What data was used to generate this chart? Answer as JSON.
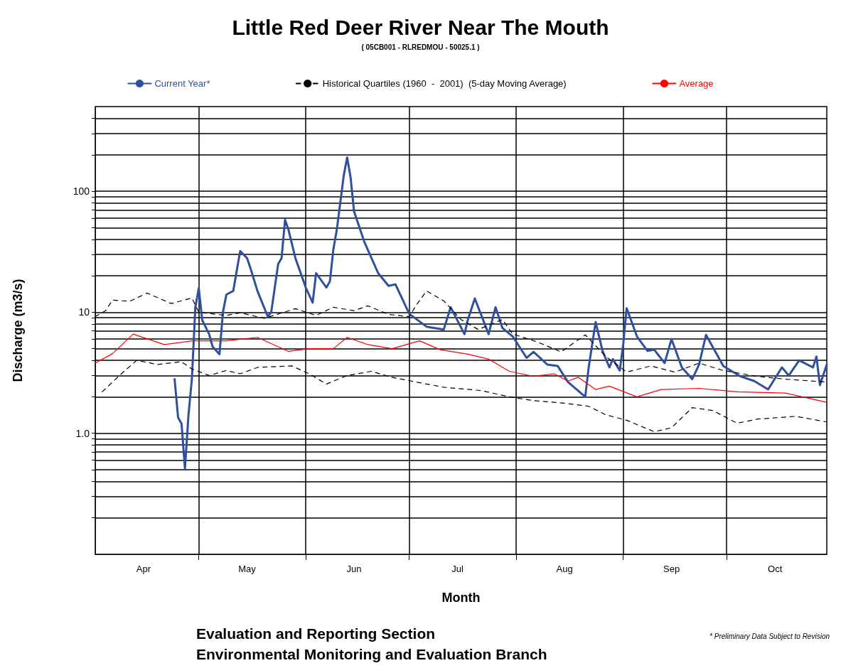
{
  "chart_data": {
    "type": "line",
    "title": "Little Red Deer River Near The Mouth",
    "subtitle": "( 05CB001 - RLREDMOU - 50025.1 )",
    "xlabel": "Month",
    "ylabel": "Discharge (m3/s)",
    "annotations": [
      "Evaluation and Reporting Section",
      "Environmental Monitoring and Evaluation Branch",
      "* Preliminary Data Subject to Revision"
    ],
    "log": "y",
    "grid": true,
    "legend": "top",
    "marker": "none",
    "xlim": [
      "--04-01",
      "--10-30"
    ],
    "xticks": [
      {
        "value": "--05-01",
        "label": null
      },
      {
        "value": "--06-01",
        "label": null
      },
      {
        "value": "--07-01",
        "label": null
      },
      {
        "value": "--08-01",
        "label": null
      },
      {
        "value": "--09-01",
        "label": null
      },
      {
        "value": "--10-01",
        "label": null
      },
      {
        "value": "--04-15",
        "label": "Apr"
      },
      {
        "value": "--05-15",
        "label": "May"
      },
      {
        "value": "--06-15",
        "label": "Jun"
      },
      {
        "value": "--07-15",
        "label": "Jul"
      },
      {
        "value": "--08-15",
        "label": "Aug"
      },
      {
        "value": "--09-15",
        "label": "Sep"
      },
      {
        "value": "--10-15",
        "label": "Oct"
      }
    ],
    "ylim": [
      0.1,
      500
    ],
    "yticks": [
      {
        "value": 0.2,
        "label": null
      },
      {
        "value": 0.3,
        "label": null
      },
      {
        "value": 0.4,
        "label": null
      },
      {
        "value": 0.5,
        "label": null
      },
      {
        "value": 0.6,
        "label": null
      },
      {
        "value": 0.7,
        "label": null
      },
      {
        "value": 0.8,
        "label": null
      },
      {
        "value": 0.9,
        "label": null
      },
      {
        "value": 1,
        "label": "1.0"
      },
      {
        "value": 2,
        "label": null
      },
      {
        "value": 3,
        "label": null
      },
      {
        "value": 4,
        "label": null
      },
      {
        "value": 5,
        "label": null
      },
      {
        "value": 6,
        "label": null
      },
      {
        "value": 7,
        "label": null
      },
      {
        "value": 8,
        "label": null
      },
      {
        "value": 9,
        "label": null
      },
      10,
      {
        "value": 20,
        "label": null
      },
      {
        "value": 30,
        "label": null
      },
      {
        "value": 40,
        "label": null
      },
      {
        "value": 50,
        "label": null
      },
      {
        "value": 60,
        "label": null
      },
      {
        "value": 70,
        "label": null
      },
      {
        "value": 80,
        "label": null
      },
      {
        "value": 90,
        "label": null
      },
      100,
      {
        "value": 200,
        "label": null
      },
      {
        "value": 300,
        "label": null
      },
      {
        "value": 400,
        "label": null
      }
    ],
    "series": [
      {
        "name": "Current Year*",
        "color": "#2f4f9f",
        "line_style": "solid",
        "x": [
          "--04-24",
          "--04-25",
          "--04-26",
          "--04-27",
          "--04-28",
          "--04-29",
          "--04-30",
          "--05-01",
          "--05-02",
          "--05-04",
          "--05-05",
          "--05-07",
          "--05-08",
          "--05-09",
          "--05-11",
          "--05-12",
          "--05-13",
          "--05-15",
          "--05-16",
          "--05-18",
          "--05-21",
          "--05-22",
          "--05-24",
          "--05-25",
          "--05-26",
          "--05-27",
          "--05-29",
          "--06-01",
          "--06-03",
          "--06-04",
          "--06-07",
          "--06-08",
          "--06-09",
          "--06-10",
          "--06-12",
          "--06-13",
          "--06-14",
          "--06-15",
          "--06-18",
          "--06-22",
          "--06-25",
          "--06-27",
          "--07-01",
          "--07-06",
          "--07-11",
          "--07-13",
          "--07-17",
          "--07-18",
          "--07-20",
          "--07-24",
          "--07-26",
          "--07-28",
          "--07-31",
          "--08-04",
          "--08-06",
          "--08-10",
          "--08-13",
          "--08-16",
          "--08-21",
          "--08-22",
          "--08-24",
          "--08-26",
          "--08-28",
          "--08-29",
          "--08-31",
          "--09-01",
          "--09-02",
          "--09-05",
          "--09-08",
          "--09-10",
          "--09-13",
          "--09-15",
          "--09-18",
          "--09-21",
          "--09-23",
          "--09-25",
          "--09-30",
          "--10-05",
          "--10-09",
          "--10-13",
          "--10-17",
          "--10-19",
          "--10-22",
          "--10-26",
          "--10-27",
          "--10-28",
          "--10-30"
        ],
        "values": [
          2.8,
          1.35,
          1.2,
          0.51,
          1.4,
          2.8,
          11,
          15.8,
          8.6,
          6.6,
          5.2,
          4.5,
          10,
          14,
          15,
          22,
          32,
          28,
          23,
          15,
          9.2,
          10,
          25,
          28,
          58,
          48,
          28,
          16,
          12,
          21,
          16,
          18,
          33,
          48,
          134,
          190,
          130,
          68,
          38,
          21,
          16.5,
          17,
          9.7,
          7.6,
          7.2,
          11,
          6.6,
          8.7,
          13,
          6.6,
          11,
          7.4,
          6.3,
          4.2,
          4.7,
          3.7,
          3.6,
          2.65,
          2.0,
          3.5,
          8.3,
          4.8,
          3.5,
          4.1,
          3.3,
          5.4,
          10.8,
          6.3,
          4.8,
          4.9,
          3.8,
          6.0,
          3.5,
          2.8,
          3.7,
          6.5,
          3.6,
          2.95,
          2.7,
          2.3,
          3.5,
          3.0,
          4.0,
          3.5,
          4.3,
          2.5,
          3.7
        ]
      },
      {
        "name": "Historical Quartiles (1960  -  2001)  (5-day Moving Average)",
        "color": "#000000",
        "line_style": "dashed",
        "x": [
          "--04-01",
          "--04-04",
          "--04-06",
          "--04-11",
          "--04-16",
          "--04-23",
          "--04-29",
          "--05-01",
          "--05-09",
          "--05-13",
          "--05-20",
          "--05-29",
          "--06-04",
          "--06-09",
          "--06-15",
          "--06-19",
          "--06-25",
          "--07-01",
          "--07-03",
          "--07-06",
          "--07-11",
          "--07-16",
          "--07-21",
          "--07-28",
          "--07-31",
          "--08-07",
          "--08-14",
          "--08-21",
          "--08-27",
          "--09-02",
          "--09-09",
          "--09-16",
          "--09-23",
          "--09-30",
          "--10-10",
          "--10-18",
          "--10-30"
        ],
        "values": [
          9.2,
          10.3,
          12.6,
          12.3,
          14.4,
          11.8,
          13.1,
          10.0,
          9.4,
          9.9,
          8.9,
          10.7,
          9.4,
          11.0,
          10.3,
          11.3,
          9.6,
          9.2,
          11.4,
          15,
          12.4,
          8.7,
          7.2,
          8.7,
          6.6,
          5.7,
          4.7,
          6.5,
          4.3,
          3.2,
          3.6,
          3.2,
          3.8,
          3.3,
          2.95,
          2.8,
          2.65
        ]
      },
      {
        "color": "#000000",
        "line_style": "dashed",
        "x": [
          "--04-03",
          "--04-08",
          "--04-13",
          "--04-19",
          "--04-26",
          "--04-29",
          "--05-04",
          "--05-09",
          "--05-13",
          "--05-18",
          "--05-28",
          "--06-02",
          "--06-07",
          "--06-13",
          "--06-20",
          "--06-26",
          "--07-03",
          "--07-11",
          "--07-22",
          "--07-30",
          "--08-06",
          "--08-15",
          "--08-22",
          "--08-27",
          "--09-02",
          "--09-10",
          "--09-15",
          "--09-21",
          "--09-27",
          "--10-04",
          "--10-10",
          "--10-21",
          "--10-30"
        ],
        "values": [
          2.2,
          3.0,
          4.0,
          3.7,
          3.9,
          3.4,
          3.0,
          3.3,
          3.1,
          3.5,
          3.6,
          3.1,
          2.55,
          3.0,
          3.25,
          2.9,
          2.65,
          2.4,
          2.25,
          2.0,
          1.86,
          1.77,
          1.67,
          1.42,
          1.28,
          1.03,
          1.11,
          1.63,
          1.54,
          1.21,
          1.31,
          1.38,
          1.24
        ]
      },
      {
        "name": "Average",
        "color": "#ff0000",
        "line_style": "solid",
        "x": [
          "--04-01",
          "--04-06",
          "--04-12",
          "--04-21",
          "--04-29",
          "--05-09",
          "--05-18",
          "--05-27",
          "--06-02",
          "--06-09",
          "--06-13",
          "--06-19",
          "--06-26",
          "--07-04",
          "--07-10",
          "--07-18",
          "--07-24",
          "--07-30",
          "--08-06",
          "--08-12",
          "--08-16",
          "--08-19",
          "--08-24",
          "--08-28",
          "--09-05",
          "--09-12",
          "--09-23",
          "--10-04",
          "--10-18",
          "--10-30"
        ],
        "values": [
          3.8,
          4.55,
          6.6,
          5.4,
          5.8,
          5.8,
          6.2,
          4.75,
          5.0,
          5.0,
          6.2,
          5.4,
          5.0,
          5.8,
          4.9,
          4.5,
          4.1,
          3.25,
          2.95,
          3.1,
          2.7,
          2.9,
          2.3,
          2.45,
          2.0,
          2.3,
          2.35,
          2.2,
          2.15,
          1.8
        ]
      }
    ]
  }
}
